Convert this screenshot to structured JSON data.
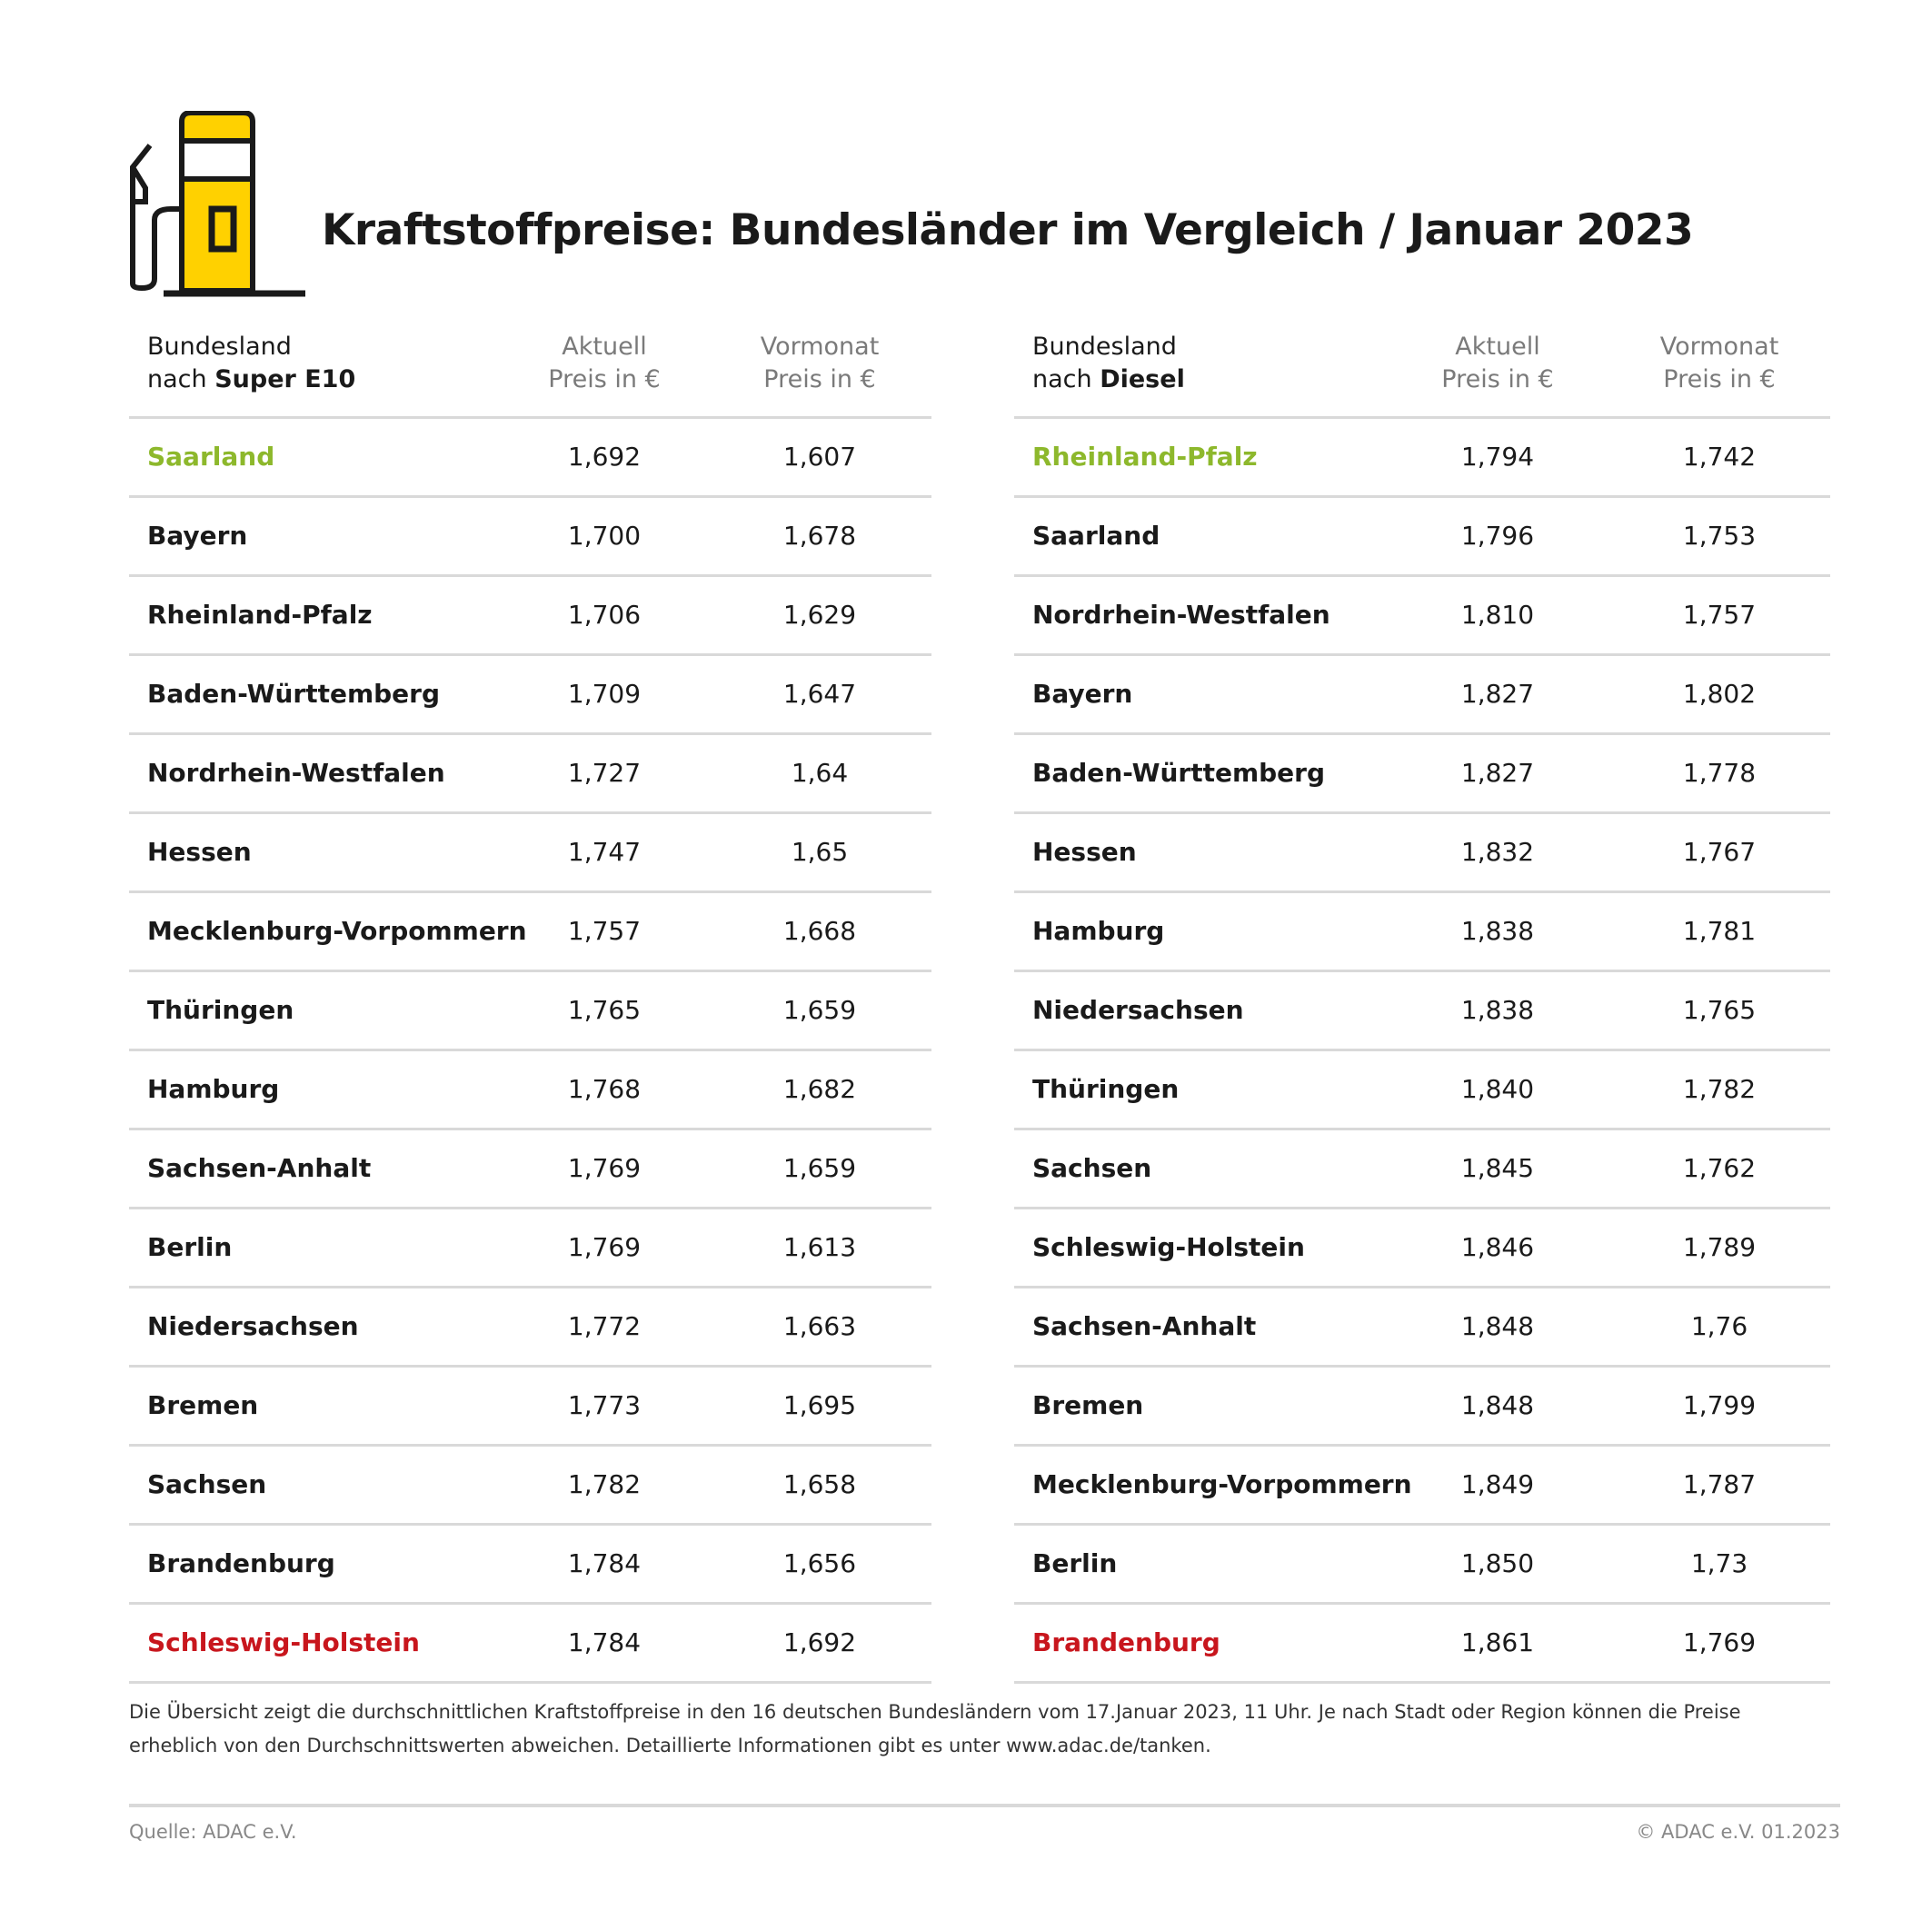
{
  "title": "Kraftstoffpreise: Bundesländer im Vergleich / Januar 2023",
  "colors": {
    "accent_yellow": "#ffd100",
    "best": "#8db82c",
    "worst": "#c8161d"
  },
  "icon": "fuel-pump-icon",
  "tables": [
    {
      "header": {
        "name_line1": "Bundesland",
        "name_prefix": "nach ",
        "fuel": "Super E10",
        "col1_line1": "Aktuell",
        "col1_line2": "Preis in €",
        "col2_line1": "Vormonat",
        "col2_line2": "Preis in €"
      },
      "rows": [
        {
          "land": "Saarland",
          "aktuell": "1,692",
          "vormonat": "1,607",
          "status": "best"
        },
        {
          "land": "Bayern",
          "aktuell": "1,700",
          "vormonat": "1,678"
        },
        {
          "land": "Rheinland-Pfalz",
          "aktuell": "1,706",
          "vormonat": "1,629"
        },
        {
          "land": "Baden-Württemberg",
          "aktuell": "1,709",
          "vormonat": "1,647"
        },
        {
          "land": "Nordrhein-Westfalen",
          "aktuell": "1,727",
          "vormonat": "1,64"
        },
        {
          "land": "Hessen",
          "aktuell": "1,747",
          "vormonat": "1,65"
        },
        {
          "land": "Mecklenburg-Vorpommern",
          "aktuell": "1,757",
          "vormonat": "1,668"
        },
        {
          "land": "Thüringen",
          "aktuell": "1,765",
          "vormonat": "1,659"
        },
        {
          "land": "Hamburg",
          "aktuell": "1,768",
          "vormonat": "1,682"
        },
        {
          "land": "Sachsen-Anhalt",
          "aktuell": "1,769",
          "vormonat": "1,659"
        },
        {
          "land": "Berlin",
          "aktuell": "1,769",
          "vormonat": "1,613"
        },
        {
          "land": "Niedersachsen",
          "aktuell": "1,772",
          "vormonat": "1,663"
        },
        {
          "land": "Bremen",
          "aktuell": "1,773",
          "vormonat": "1,695"
        },
        {
          "land": "Sachsen",
          "aktuell": "1,782",
          "vormonat": "1,658"
        },
        {
          "land": "Brandenburg",
          "aktuell": "1,784",
          "vormonat": "1,656"
        },
        {
          "land": "Schleswig-Holstein",
          "aktuell": "1,784",
          "vormonat": "1,692",
          "status": "worst"
        }
      ]
    },
    {
      "header": {
        "name_line1": "Bundesland",
        "name_prefix": "nach ",
        "fuel": "Diesel",
        "col1_line1": "Aktuell",
        "col1_line2": "Preis in €",
        "col2_line1": "Vormonat",
        "col2_line2": "Preis in €"
      },
      "rows": [
        {
          "land": "Rheinland-Pfalz",
          "aktuell": "1,794",
          "vormonat": "1,742",
          "status": "best"
        },
        {
          "land": "Saarland",
          "aktuell": "1,796",
          "vormonat": "1,753"
        },
        {
          "land": "Nordrhein-Westfalen",
          "aktuell": "1,810",
          "vormonat": "1,757"
        },
        {
          "land": "Bayern",
          "aktuell": "1,827",
          "vormonat": "1,802"
        },
        {
          "land": "Baden-Württemberg",
          "aktuell": "1,827",
          "vormonat": "1,778"
        },
        {
          "land": "Hessen",
          "aktuell": "1,832",
          "vormonat": "1,767"
        },
        {
          "land": "Hamburg",
          "aktuell": "1,838",
          "vormonat": "1,781"
        },
        {
          "land": "Niedersachsen",
          "aktuell": "1,838",
          "vormonat": "1,765"
        },
        {
          "land": "Thüringen",
          "aktuell": "1,840",
          "vormonat": "1,782"
        },
        {
          "land": "Sachsen",
          "aktuell": "1,845",
          "vormonat": "1,762"
        },
        {
          "land": "Schleswig-Holstein",
          "aktuell": "1,846",
          "vormonat": "1,789"
        },
        {
          "land": "Sachsen-Anhalt",
          "aktuell": "1,848",
          "vormonat": "1,76"
        },
        {
          "land": "Bremen",
          "aktuell": "1,848",
          "vormonat": "1,799"
        },
        {
          "land": "Mecklenburg-Vorpommern",
          "aktuell": "1,849",
          "vormonat": "1,787"
        },
        {
          "land": "Berlin",
          "aktuell": "1,850",
          "vormonat": "1,73"
        },
        {
          "land": "Brandenburg",
          "aktuell": "1,861",
          "vormonat": "1,769",
          "status": "worst"
        }
      ]
    }
  ],
  "note": "Die Übersicht zeigt die durchschnittlichen Kraftstoffpreise in den 16 deutschen Bundesländern vom 17.Januar 2023, 11 Uhr. Je nach Stadt oder Region können die Preise erheblich von den Durchschnittswerten abweichen. Detaillierte Informationen gibt es unter www.adac.de/tanken.",
  "footer": {
    "source": "Quelle: ADAC e.V.",
    "copyright": "© ADAC e.V. 01.2023"
  }
}
